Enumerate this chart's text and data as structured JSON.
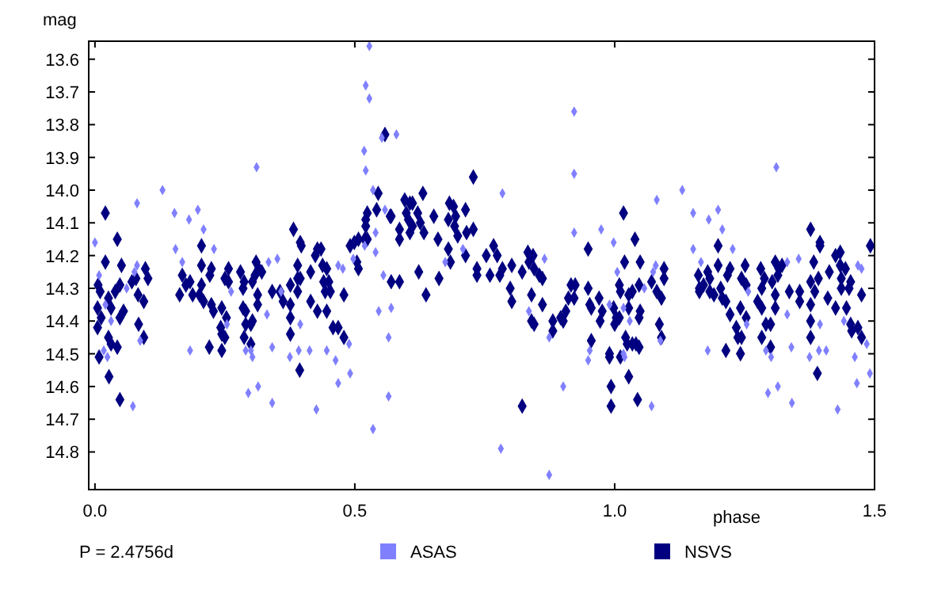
{
  "chart_data": {
    "type": "scatter",
    "ylabel": "mag",
    "xlabel": "phase",
    "annotations": [
      "P = 2.4756d"
    ],
    "xlim": [
      -0.012,
      1.5
    ],
    "ylim": [
      14.915,
      13.545
    ],
    "xticks": [
      {
        "value": 0,
        "label": "0.0"
      },
      0.5,
      {
        "value": 1,
        "label": "1.0"
      },
      1.5
    ],
    "yticks": [
      13.6,
      13.7,
      13.8,
      13.9,
      {
        "value": 14,
        "label": "14.0"
      },
      14.1,
      14.2,
      14.3,
      14.4,
      14.5,
      14.6,
      14.7,
      14.8
    ],
    "grid": false,
    "legend": "bottom",
    "marker": "diamond",
    "series": [
      {
        "name": "ASAS",
        "color": "#8080ff",
        "x": [
          0.0,
          0.008,
          0.02,
          0.017,
          0.024,
          0.031,
          0.061,
          0.073,
          0.076,
          0.081,
          0.081,
          0.087,
          0.13,
          0.153,
          0.155,
          0.168,
          0.181,
          0.183,
          0.198,
          0.209,
          0.229,
          0.254,
          0.262,
          0.29,
          0.295,
          0.3,
          0.303,
          0.311,
          0.314,
          0.331,
          0.334,
          0.341,
          0.341,
          0.351,
          0.358,
          0.375,
          0.392,
          0.395,
          0.413,
          0.426,
          0.446,
          0.463,
          0.468,
          0.477,
          0.468,
          0.491,
          0.489,
          0.497,
          0.518,
          0.521,
          0.521,
          0.528,
          0.528,
          0.519,
          0.535,
          0.54,
          0.54,
          0.535,
          0.546,
          0.552,
          0.555,
          0.558,
          0.565,
          0.565,
          0.57,
          0.58,
          0.674,
          0.708,
          0.781,
          0.784,
          0.835,
          0.865,
          0.874,
          0.874,
          0.901,
          0.922,
          0.922,
          0.922,
          0.952,
          0.949,
          0.974,
          0.998,
          1.005,
          0.99,
          1.017,
          1.017,
          1.019,
          1.029,
          1.057,
          1.071,
          1.074,
          1.079,
          1.081,
          1.088,
          1.13,
          1.151,
          1.151,
          1.166,
          1.179,
          1.181,
          1.199,
          1.207,
          1.227,
          1.254,
          1.257,
          1.291,
          1.295,
          1.301,
          1.311,
          1.314,
          1.332,
          1.332,
          1.34,
          1.341,
          1.354,
          1.375,
          1.393,
          1.395,
          1.407,
          1.429,
          1.441,
          1.462,
          1.466,
          1.468,
          1.475,
          1.491,
          1.485
        ],
        "values": [
          14.16,
          14.26,
          14.35,
          14.49,
          14.51,
          14.4,
          14.3,
          14.66,
          14.25,
          14.23,
          14.04,
          14.46,
          14.0,
          14.07,
          14.18,
          14.22,
          14.09,
          14.49,
          14.06,
          14.12,
          14.18,
          14.41,
          14.31,
          14.49,
          14.62,
          14.49,
          14.51,
          13.93,
          14.6,
          14.38,
          14.22,
          14.48,
          14.65,
          14.21,
          14.31,
          14.51,
          14.49,
          14.41,
          14.49,
          14.67,
          14.49,
          14.52,
          14.23,
          14.24,
          14.59,
          14.56,
          14.47,
          14.21,
          13.88,
          13.94,
          13.68,
          13.72,
          13.56,
          14.17,
          14.0,
          14.13,
          14.19,
          14.73,
          14.37,
          13.84,
          14.26,
          14.06,
          14.45,
          14.63,
          14.36,
          13.83,
          14.22,
          14.18,
          14.79,
          14.01,
          14.37,
          14.21,
          14.87,
          14.45,
          14.6,
          13.76,
          13.95,
          14.13,
          14.49,
          14.52,
          14.12,
          14.16,
          14.25,
          14.35,
          14.36,
          14.5,
          14.51,
          14.4,
          14.3,
          14.66,
          14.25,
          14.23,
          14.03,
          14.46,
          14.0,
          14.07,
          14.18,
          14.22,
          14.49,
          14.09,
          14.06,
          14.12,
          14.18,
          14.41,
          14.31,
          14.49,
          14.62,
          14.51,
          13.93,
          14.6,
          14.38,
          14.22,
          14.48,
          14.65,
          14.21,
          14.51,
          14.49,
          14.41,
          14.49,
          14.67,
          14.4,
          14.51,
          14.59,
          14.23,
          14.24,
          14.56,
          14.47
        ]
      },
      {
        "name": "NSVS",
        "color": "#000080",
        "x": [
          0.02,
          0.043,
          0.02,
          0.051,
          0.006,
          0.01,
          0.026,
          0.039,
          0.048,
          0.005,
          0.031,
          0.012,
          0.055,
          0.048,
          0.005,
          0.026,
          0.031,
          0.043,
          0.008,
          0.027,
          0.048,
          0.071,
          0.079,
          0.083,
          0.094,
          0.097,
          0.102,
          0.084,
          0.094,
          0.168,
          0.163,
          0.175,
          0.183,
          0.188,
          0.201,
          0.205,
          0.205,
          0.205,
          0.209,
          0.221,
          0.224,
          0.224,
          0.22,
          0.228,
          0.244,
          0.242,
          0.244,
          0.25,
          0.244,
          0.253,
          0.25,
          0.257,
          0.257,
          0.28,
          0.285,
          0.287,
          0.285,
          0.29,
          0.287,
          0.29,
          0.3,
          0.3,
          0.303,
          0.303,
          0.31,
          0.315,
          0.321,
          0.313,
          0.313,
          0.308,
          0.341,
          0.356,
          0.362,
          0.382,
          0.395,
          0.397,
          0.39,
          0.376,
          0.39,
          0.395,
          0.39,
          0.376,
          0.376,
          0.376,
          0.394,
          0.415,
          0.415,
          0.424,
          0.428,
          0.435,
          0.438,
          0.446,
          0.44,
          0.45,
          0.453,
          0.443,
          0.428,
          0.446,
          0.458,
          0.468,
          0.479,
          0.479,
          0.491,
          0.499,
          0.507,
          0.504,
          0.507,
          0.519,
          0.524,
          0.521,
          0.521,
          0.524,
          0.542,
          0.545,
          0.558,
          0.57,
          0.568,
          0.57,
          0.586,
          0.586,
          0.586,
          0.596,
          0.599,
          0.603,
          0.606,
          0.611,
          0.606,
          0.611,
          0.621,
          0.626,
          0.623,
          0.631,
          0.633,
          0.637,
          0.652,
          0.66,
          0.662,
          0.682,
          0.69,
          0.68,
          0.694,
          0.692,
          0.698,
          0.684,
          0.68,
          0.713,
          0.715,
          0.728,
          0.728,
          0.713,
          0.735,
          0.735,
          0.753,
          0.76,
          0.767,
          0.774,
          0.779,
          0.784,
          0.799,
          0.802,
          0.802,
          0.822,
          0.822,
          0.833,
          0.835,
          0.843,
          0.845,
          0.855,
          0.861,
          0.84,
          0.84,
          0.845,
          0.861,
          0.881,
          0.881,
          0.896,
          0.901,
          0.906,
          0.911,
          0.916,
          0.924,
          0.922,
          0.949,
          0.949,
          0.952,
          0.955,
          0.955,
          0.97,
          0.972,
          0.976,
          0.99,
          0.99,
          0.993,
          0.993,
          0.998,
          1.0,
          1.003,
          1.009,
          1.011,
          1.009,
          1.011,
          1.017,
          1.019,
          1.021,
          1.024,
          1.027,
          1.027,
          1.027,
          1.034,
          1.039,
          1.034,
          1.041,
          1.047,
          1.044,
          1.049,
          1.047,
          1.047,
          1.049,
          1.071,
          1.081,
          1.09,
          1.086,
          1.09,
          1.095,
          1.095,
          1.161,
          1.163,
          1.163,
          1.171,
          1.179,
          1.183,
          1.183,
          1.191,
          1.199,
          1.199,
          1.204,
          1.207,
          1.214,
          1.217,
          1.222,
          1.222,
          1.214,
          1.234,
          1.237,
          1.244,
          1.242,
          1.242,
          1.244,
          1.251,
          1.253,
          1.253,
          1.275,
          1.281,
          1.283,
          1.283,
          1.283,
          1.288,
          1.291,
          1.3,
          1.3,
          1.303,
          1.309,
          1.309,
          1.309,
          1.314,
          1.316,
          1.322,
          1.336,
          1.356,
          1.356,
          1.377,
          1.383,
          1.385,
          1.377,
          1.377,
          1.377,
          1.377,
          1.39,
          1.395,
          1.395,
          1.392,
          1.41,
          1.413,
          1.425,
          1.434,
          1.425,
          1.434,
          1.436,
          1.436,
          1.446,
          1.444,
          1.451,
          1.454,
          1.454,
          1.456,
          1.468,
          1.475,
          1.475,
          1.492
        ],
        "values": [
          14.07,
          14.15,
          14.22,
          14.23,
          14.29,
          14.31,
          14.33,
          14.31,
          14.29,
          14.36,
          14.36,
          14.39,
          14.37,
          14.39,
          14.42,
          14.45,
          14.47,
          14.48,
          14.51,
          14.57,
          14.64,
          14.28,
          14.27,
          14.32,
          14.34,
          14.24,
          14.27,
          14.41,
          14.45,
          14.26,
          14.32,
          14.29,
          14.28,
          14.32,
          14.32,
          14.17,
          14.23,
          14.29,
          14.34,
          14.26,
          14.24,
          14.35,
          14.48,
          14.37,
          14.36,
          14.42,
          14.44,
          14.45,
          14.49,
          14.39,
          14.27,
          14.24,
          14.28,
          14.25,
          14.3,
          14.28,
          14.36,
          14.37,
          14.45,
          14.41,
          14.41,
          14.47,
          14.4,
          14.28,
          14.22,
          14.24,
          14.25,
          14.35,
          14.32,
          14.26,
          14.31,
          14.31,
          14.34,
          14.12,
          14.16,
          14.17,
          14.23,
          14.29,
          14.27,
          14.27,
          14.31,
          14.35,
          14.39,
          14.44,
          14.55,
          14.25,
          14.34,
          14.2,
          14.18,
          14.18,
          14.23,
          14.24,
          14.28,
          14.28,
          14.31,
          14.31,
          14.37,
          14.37,
          14.42,
          14.42,
          14.45,
          14.32,
          14.17,
          14.16,
          14.15,
          14.22,
          14.24,
          14.15,
          14.15,
          14.11,
          14.09,
          14.07,
          14.06,
          14.01,
          13.83,
          14.08,
          14.08,
          14.28,
          14.28,
          14.15,
          14.12,
          14.03,
          14.07,
          14.09,
          14.04,
          14.04,
          14.13,
          14.11,
          14.07,
          14.1,
          14.25,
          14.01,
          14.13,
          14.32,
          14.08,
          14.15,
          14.27,
          14.04,
          14.05,
          14.09,
          14.08,
          14.11,
          14.14,
          14.22,
          14.18,
          14.06,
          14.13,
          14.12,
          13.96,
          14.2,
          14.24,
          14.26,
          14.2,
          14.26,
          14.17,
          14.2,
          14.26,
          14.24,
          14.3,
          14.23,
          14.34,
          14.25,
          14.66,
          14.19,
          14.22,
          14.2,
          14.24,
          14.26,
          14.27,
          14.32,
          14.4,
          14.41,
          14.35,
          14.4,
          14.43,
          14.39,
          14.4,
          14.37,
          14.33,
          14.29,
          14.29,
          14.33,
          14.18,
          14.3,
          14.35,
          14.36,
          14.46,
          14.33,
          14.4,
          14.37,
          14.5,
          14.51,
          14.6,
          14.66,
          14.36,
          14.41,
          14.39,
          14.29,
          14.31,
          14.39,
          14.51,
          14.07,
          14.22,
          14.45,
          14.47,
          14.32,
          14.36,
          14.57,
          14.31,
          14.15,
          14.47,
          14.47,
          14.48,
          14.64,
          14.22,
          14.29,
          14.39,
          14.37,
          14.28,
          14.31,
          14.33,
          14.41,
          14.45,
          14.24,
          14.27,
          14.26,
          14.3,
          14.31,
          14.29,
          14.25,
          14.27,
          14.31,
          14.32,
          14.17,
          14.23,
          14.3,
          14.33,
          14.34,
          14.26,
          14.24,
          14.38,
          14.49,
          14.42,
          14.45,
          14.45,
          14.36,
          14.5,
          14.27,
          14.23,
          14.29,
          14.39,
          14.34,
          14.24,
          14.3,
          14.36,
          14.45,
          14.27,
          14.41,
          14.41,
          14.48,
          14.28,
          14.22,
          14.32,
          14.36,
          14.26,
          14.24,
          14.23,
          14.31,
          14.31,
          14.34,
          14.12,
          14.22,
          14.31,
          14.28,
          14.35,
          14.4,
          14.45,
          14.56,
          14.16,
          14.17,
          14.27,
          14.33,
          14.25,
          14.2,
          14.19,
          14.36,
          14.23,
          14.27,
          14.3,
          14.36,
          14.24,
          14.3,
          14.28,
          14.41,
          14.43,
          14.42,
          14.32,
          14.45,
          14.17
        ]
      }
    ]
  }
}
